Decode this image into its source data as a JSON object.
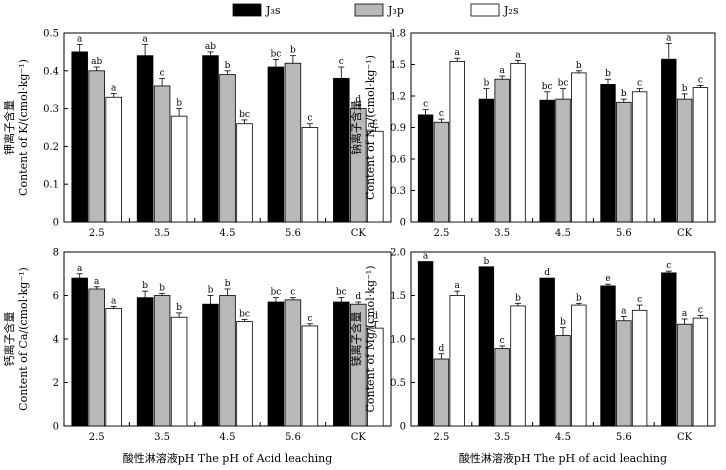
{
  "chart_data": {
    "type": "bar",
    "legend": {
      "placement": "top-center",
      "entries": [
        {
          "label": "J₃s",
          "fill": "#000000"
        },
        {
          "label": "J₃p",
          "fill": "#b8b8b8"
        },
        {
          "label": "J₂s",
          "fill": "#ffffff"
        }
      ]
    },
    "colors": {
      "J3s": "#000000",
      "J3p": "#b8b8b8",
      "J2s": "#ffffff",
      "stroke": "#000000"
    },
    "categories": [
      "2.5",
      "3.5",
      "4.5",
      "5.6",
      "CK"
    ],
    "panels": [
      {
        "id": "K",
        "ylabel_cn": "钾离子含量",
        "ylabel_en": "Content of K/(cmol·kg⁻¹)",
        "ylim": [
          0,
          0.5
        ],
        "yticks": [
          "0",
          "0.1",
          "0.2",
          "0.3",
          "0.4",
          "0.5"
        ],
        "xlabel": "",
        "series": [
          {
            "name": "J3s",
            "values": [
              0.45,
              0.44,
              0.44,
              0.41,
              0.38
            ],
            "errors": [
              0.02,
              0.03,
              0.01,
              0.02,
              0.03
            ],
            "labels": [
              "a",
              "a",
              "ab",
              "bc",
              "c"
            ]
          },
          {
            "name": "J3p",
            "values": [
              0.4,
              0.36,
              0.39,
              0.42,
              0.3
            ],
            "errors": [
              0.01,
              0.02,
              0.01,
              0.02,
              0.01
            ],
            "labels": [
              "ab",
              "c",
              "b",
              "b",
              "d"
            ]
          },
          {
            "name": "J2s",
            "values": [
              0.33,
              0.28,
              0.26,
              0.25,
              0.24
            ],
            "errors": [
              0.01,
              0.02,
              0.01,
              0.01,
              0.01
            ],
            "labels": [
              "a",
              "b",
              "bc",
              "c",
              "c"
            ]
          }
        ]
      },
      {
        "id": "Na",
        "ylabel_cn": "钠离子含量",
        "ylabel_en": "Content of Na/(cmol·kg⁻¹)",
        "ylim": [
          0,
          1.8
        ],
        "yticks": [
          "0",
          "0.3",
          "0.6",
          "0.9",
          "1.2",
          "1.5",
          "1.8"
        ],
        "xlabel": "",
        "series": [
          {
            "name": "J3s",
            "values": [
              1.02,
              1.17,
              1.16,
              1.31,
              1.55
            ],
            "errors": [
              0.05,
              0.1,
              0.08,
              0.05,
              0.15
            ],
            "labels": [
              "c",
              "b",
              "bc",
              "b",
              "a"
            ]
          },
          {
            "name": "J3p",
            "values": [
              0.95,
              1.36,
              1.17,
              1.14,
              1.17
            ],
            "errors": [
              0.03,
              0.03,
              0.1,
              0.03,
              0.05
            ],
            "labels": [
              "c",
              "a",
              "bc",
              "b",
              "b"
            ]
          },
          {
            "name": "J2s",
            "values": [
              1.53,
              1.51,
              1.42,
              1.24,
              1.28
            ],
            "errors": [
              0.03,
              0.03,
              0.02,
              0.03,
              0.02
            ],
            "labels": [
              "a",
              "a",
              "b",
              "c",
              "c"
            ]
          }
        ]
      },
      {
        "id": "Ca",
        "ylabel_cn": "钙离子含量",
        "ylabel_en": "Content of Ca/(cmol·kg⁻¹)",
        "ylim": [
          0,
          8
        ],
        "yticks": [
          "0",
          "2",
          "4",
          "6",
          "8"
        ],
        "xlabel": "酸性淋溶液pH The pH of Acid leaching",
        "series": [
          {
            "name": "J3s",
            "values": [
              6.8,
              5.9,
              5.6,
              5.7,
              5.7
            ],
            "errors": [
              0.2,
              0.3,
              0.4,
              0.2,
              0.2
            ],
            "labels": [
              "a",
              "b",
              "b",
              "bc",
              "bc"
            ]
          },
          {
            "name": "J3p",
            "values": [
              6.3,
              6.0,
              6.0,
              5.8,
              5.6
            ],
            "errors": [
              0.1,
              0.1,
              0.3,
              0.1,
              0.1
            ],
            "labels": [
              "a",
              "b",
              "b",
              "c",
              "d"
            ]
          },
          {
            "name": "J2s",
            "values": [
              5.4,
              5.0,
              4.8,
              4.6,
              4.5
            ],
            "errors": [
              0.1,
              0.2,
              0.1,
              0.1,
              0.3
            ],
            "labels": [
              "a",
              "b",
              "bc",
              "c",
              "d"
            ]
          }
        ]
      },
      {
        "id": "Mg",
        "ylabel_cn": "镁离子含量",
        "ylabel_en": "Content of Mg/(cmol·kg⁻¹)",
        "ylim": [
          0,
          2.0
        ],
        "yticks": [
          "0",
          "0.5",
          "1.0",
          "1.5",
          "2.0"
        ],
        "xlabel": "酸性淋溶液pH The pH of acid leaching",
        "series": [
          {
            "name": "J3s",
            "values": [
              1.89,
              1.83,
              1.7,
              1.61,
              1.76
            ],
            "errors": [
              0.0,
              0.0,
              0.0,
              0.02,
              0.02
            ],
            "labels": [
              "a",
              "b",
              "d",
              "e",
              "c"
            ]
          },
          {
            "name": "J3p",
            "values": [
              0.77,
              0.89,
              1.04,
              1.21,
              1.17
            ],
            "errors": [
              0.06,
              0.03,
              0.09,
              0.05,
              0.06
            ],
            "labels": [
              "d",
              "c",
              "b",
              "a",
              "a"
            ]
          },
          {
            "name": "J2s",
            "values": [
              1.5,
              1.38,
              1.39,
              1.33,
              1.24
            ],
            "errors": [
              0.05,
              0.03,
              0.02,
              0.06,
              0.03
            ],
            "labels": [
              "a",
              "b",
              "b",
              "c",
              "c"
            ]
          }
        ]
      }
    ]
  }
}
